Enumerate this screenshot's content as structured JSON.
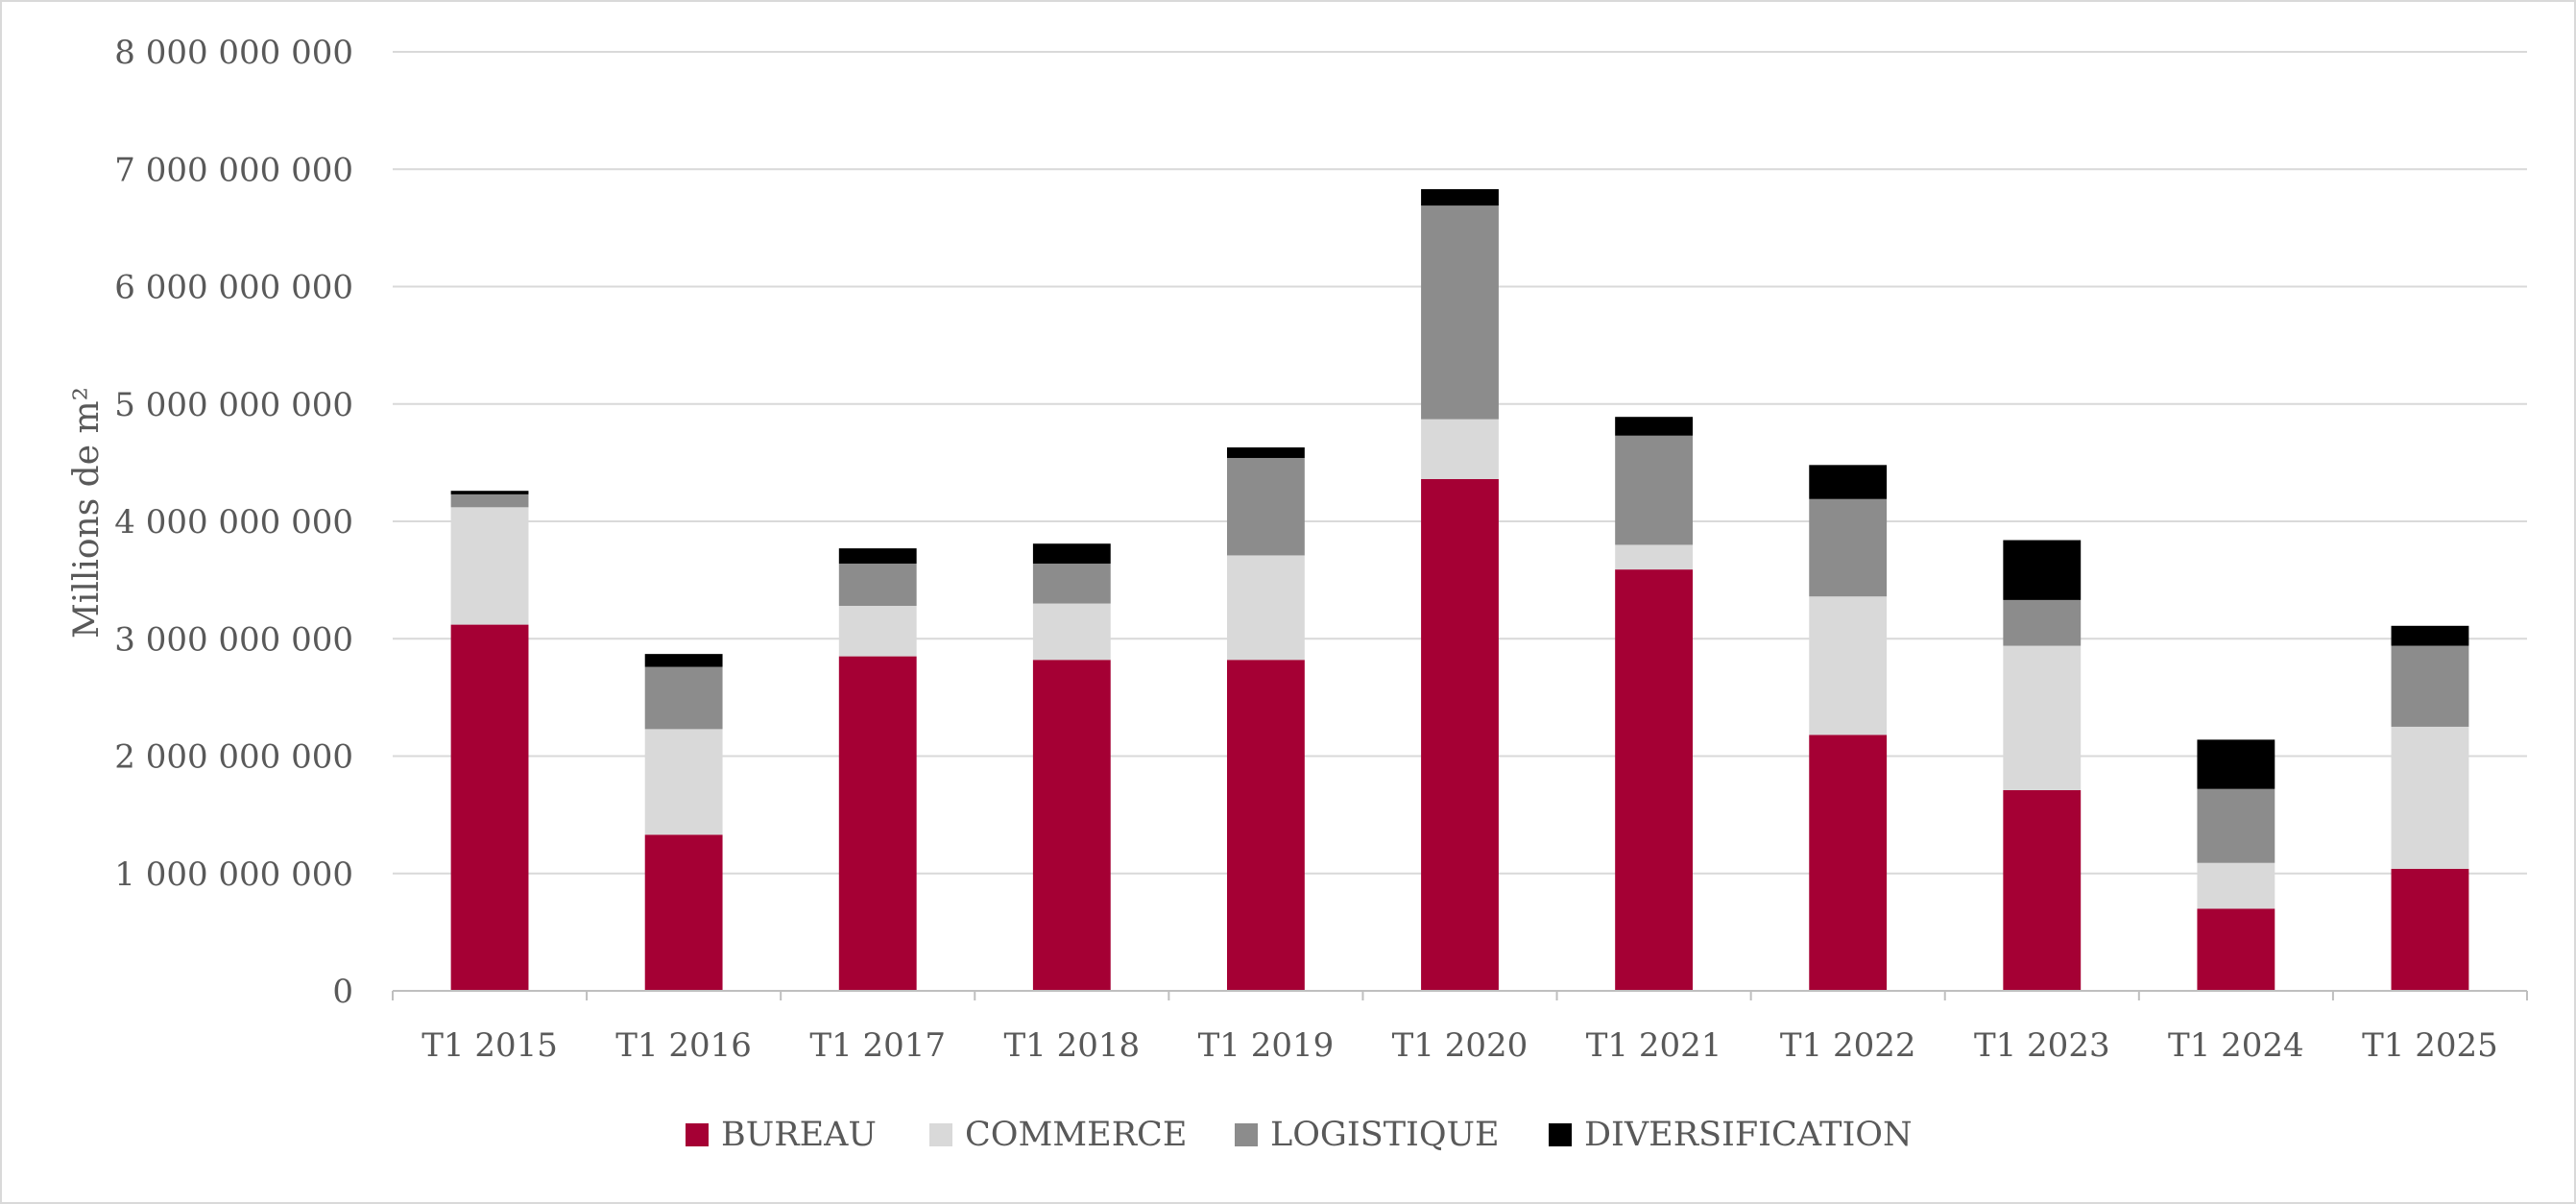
{
  "chart_data": {
    "type": "bar",
    "stacked": true,
    "title": "",
    "xlabel": "",
    "ylabel": "Millions de m²",
    "ylim": [
      0,
      8000000000
    ],
    "yticks": [
      0,
      1000000000,
      2000000000,
      3000000000,
      4000000000,
      5000000000,
      6000000000,
      7000000000,
      8000000000
    ],
    "ytick_labels": [
      "0",
      "1 000 000 000",
      "2 000 000 000",
      "3 000 000 000",
      "4 000 000 000",
      "5 000 000 000",
      "6 000 000 000",
      "7 000 000 000",
      "8 000 000 000"
    ],
    "grid": true,
    "legend_position": "bottom",
    "categories": [
      "T1 2015",
      "T1 2016",
      "T1 2017",
      "T1 2018",
      "T1 2019",
      "T1 2020",
      "T1 2021",
      "T1 2022",
      "T1 2023",
      "T1 2024",
      "T1 2025"
    ],
    "series": [
      {
        "name": "BUREAU",
        "color": "#a50034",
        "values": [
          3120000000,
          1330000000,
          2850000000,
          2820000000,
          2820000000,
          4360000000,
          3590000000,
          2180000000,
          1710000000,
          700000000,
          1040000000
        ]
      },
      {
        "name": "COMMERCE",
        "color": "#d9d9d9",
        "values": [
          1000000000,
          900000000,
          430000000,
          480000000,
          890000000,
          510000000,
          210000000,
          1180000000,
          1230000000,
          390000000,
          1210000000
        ]
      },
      {
        "name": "LOGISTIQUE",
        "color": "#8c8c8c",
        "values": [
          110000000,
          530000000,
          360000000,
          340000000,
          830000000,
          1820000000,
          930000000,
          830000000,
          390000000,
          630000000,
          690000000
        ]
      },
      {
        "name": "DIVERSIFICATION",
        "color": "#000000",
        "values": [
          30000000,
          110000000,
          130000000,
          170000000,
          90000000,
          140000000,
          160000000,
          290000000,
          510000000,
          420000000,
          170000000
        ]
      }
    ]
  }
}
